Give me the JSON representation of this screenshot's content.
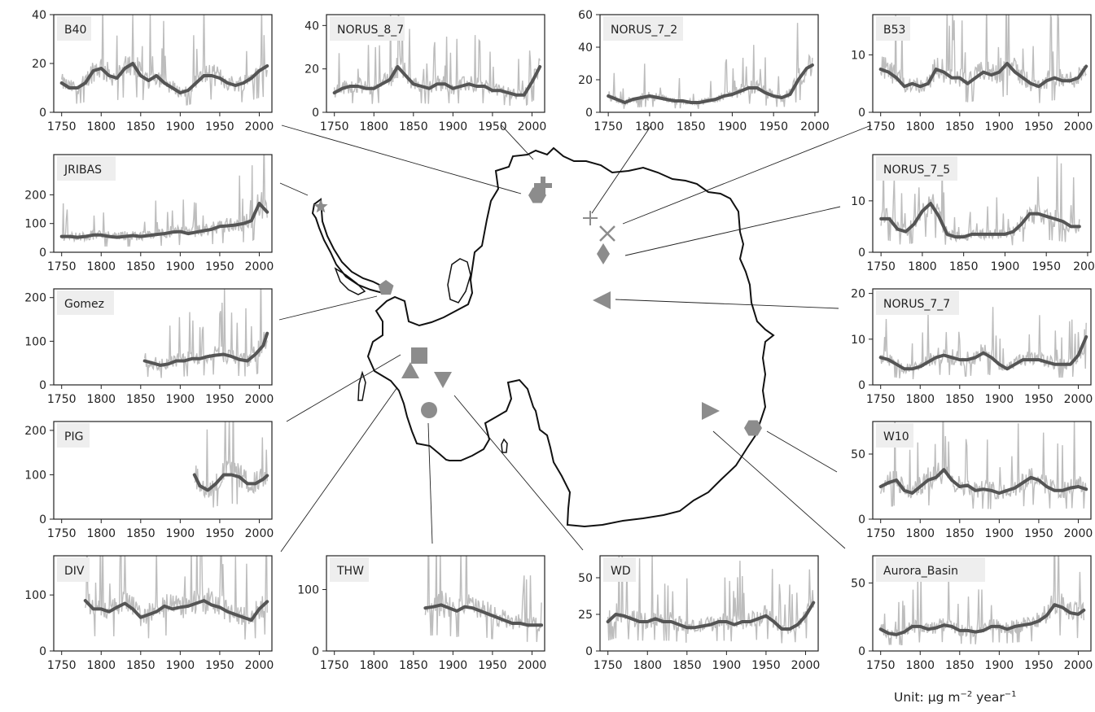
{
  "figure": {
    "unit_label": "Unit: µg m",
    "unit_exp1": "−2",
    "unit_mid": " year",
    "unit_exp2": "−1"
  },
  "colors": {
    "raw_series": "#bdbdbd",
    "smoothed_series": "#555555",
    "marker": "#8c8c8c",
    "axis": "#222222",
    "label_bg": "#eeeeee",
    "coastline": "#111111"
  },
  "chart_data": [
    {
      "type": "line",
      "site": "B40",
      "marker": "hexagon",
      "xlim": [
        1740,
        2016
      ],
      "ylim": [
        0,
        40
      ],
      "yticks": [
        0,
        20,
        40
      ],
      "xticks": [
        1750,
        1800,
        1850,
        1900,
        1950,
        2000
      ],
      "series": [
        {
          "name": "B40",
          "x": [
            1750,
            1760,
            1770,
            1780,
            1790,
            1800,
            1810,
            1820,
            1830,
            1840,
            1850,
            1860,
            1870,
            1880,
            1890,
            1900,
            1910,
            1920,
            1930,
            1940,
            1950,
            1960,
            1970,
            1980,
            1990,
            2000,
            2010
          ],
          "values": [
            12,
            10,
            10,
            12,
            17,
            18,
            15,
            14,
            18,
            20,
            15,
            13,
            15,
            12,
            10,
            8,
            9,
            12,
            15,
            15,
            14,
            12,
            11,
            12,
            14,
            17,
            19
          ]
        }
      ]
    },
    {
      "type": "line",
      "site": "NORUS_8_7",
      "marker": "plus",
      "xlim": [
        1740,
        2016
      ],
      "ylim": [
        0,
        45
      ],
      "yticks": [
        0,
        20,
        40
      ],
      "xticks": [
        1750,
        1800,
        1850,
        1900,
        1950,
        2000
      ],
      "series": [
        {
          "name": "NORUS_8_7",
          "x": [
            1750,
            1760,
            1770,
            1780,
            1790,
            1800,
            1810,
            1820,
            1830,
            1840,
            1850,
            1860,
            1870,
            1880,
            1890,
            1900,
            1910,
            1920,
            1930,
            1940,
            1950,
            1960,
            1970,
            1980,
            1990,
            2000,
            2010
          ],
          "values": [
            9,
            11,
            12,
            12,
            11,
            11,
            13,
            15,
            21,
            17,
            13,
            12,
            11,
            13,
            13,
            11,
            12,
            13,
            12,
            12,
            10,
            10,
            9,
            8,
            8,
            14,
            21
          ]
        }
      ]
    },
    {
      "type": "line",
      "site": "NORUS_7_2",
      "marker": "thin-plus",
      "xlim": [
        1740,
        2004
      ],
      "ylim": [
        0,
        60
      ],
      "yticks": [
        0,
        20,
        40,
        60
      ],
      "xticks": [
        1750,
        1800,
        1850,
        1900,
        1950,
        2000
      ],
      "series": [
        {
          "name": "NORUS_7_2",
          "x": [
            1750,
            1760,
            1770,
            1780,
            1790,
            1800,
            1810,
            1820,
            1830,
            1840,
            1850,
            1860,
            1870,
            1880,
            1890,
            1900,
            1910,
            1920,
            1930,
            1940,
            1950,
            1960,
            1970,
            1980,
            1990,
            1997
          ],
          "values": [
            10,
            8,
            6,
            8,
            9,
            10,
            9,
            8,
            7,
            7,
            6,
            6,
            7,
            8,
            10,
            11,
            13,
            15,
            15,
            12,
            10,
            9,
            11,
            20,
            27,
            29
          ]
        }
      ]
    },
    {
      "type": "line",
      "site": "B53",
      "marker": "cross",
      "xlim": [
        1740,
        2016
      ],
      "ylim": [
        0,
        17
      ],
      "yticks": [
        0,
        10
      ],
      "xticks": [
        1750,
        1800,
        1850,
        1900,
        1950,
        2000
      ],
      "series": [
        {
          "name": "B53",
          "x": [
            1750,
            1760,
            1770,
            1780,
            1790,
            1800,
            1810,
            1820,
            1830,
            1840,
            1850,
            1860,
            1870,
            1880,
            1890,
            1900,
            1910,
            1920,
            1930,
            1940,
            1950,
            1960,
            1970,
            1980,
            1990,
            2000,
            2010
          ],
          "values": [
            7.5,
            7,
            6,
            4.5,
            5,
            4.5,
            5,
            7.5,
            7,
            6,
            6,
            5,
            6,
            7,
            6.5,
            7,
            8.5,
            7,
            6,
            5,
            4.5,
            5.5,
            6,
            5.5,
            5.5,
            6,
            8
          ]
        }
      ]
    },
    {
      "type": "line",
      "site": "JRIBAS",
      "marker": "star",
      "xlim": [
        1740,
        2016
      ],
      "ylim": [
        0,
        340
      ],
      "yticks": [
        0,
        100,
        200
      ],
      "xticks": [
        1750,
        1800,
        1850,
        1900,
        1950,
        2000
      ],
      "series": [
        {
          "name": "JRIBAS",
          "x": [
            1750,
            1760,
            1770,
            1780,
            1790,
            1800,
            1810,
            1820,
            1830,
            1840,
            1850,
            1860,
            1870,
            1880,
            1890,
            1900,
            1910,
            1920,
            1930,
            1940,
            1950,
            1960,
            1970,
            1980,
            1990,
            2000,
            2010
          ],
          "values": [
            55,
            55,
            52,
            55,
            60,
            60,
            55,
            52,
            55,
            58,
            55,
            58,
            62,
            65,
            70,
            72,
            65,
            70,
            75,
            80,
            90,
            92,
            95,
            100,
            110,
            170,
            140
          ]
        }
      ]
    },
    {
      "type": "line",
      "site": "NORUS_7_5",
      "marker": "diamond",
      "xlim": [
        1740,
        2004
      ],
      "ylim": [
        0,
        19
      ],
      "yticks": [
        0,
        10
      ],
      "xticks": [
        1750,
        1800,
        1850,
        1900,
        1950,
        2000
      ],
      "series": [
        {
          "name": "NORUS_7_5",
          "x": [
            1750,
            1760,
            1770,
            1780,
            1790,
            1800,
            1810,
            1820,
            1830,
            1840,
            1850,
            1860,
            1870,
            1880,
            1890,
            1900,
            1910,
            1920,
            1930,
            1940,
            1950,
            1960,
            1970,
            1980,
            1990
          ],
          "values": [
            6.5,
            6.5,
            4.5,
            4,
            5.5,
            8,
            9.5,
            7,
            3.5,
            3,
            3,
            3.5,
            3.5,
            3.5,
            3.5,
            3.5,
            4,
            5.5,
            7.5,
            7.5,
            7,
            6.5,
            6,
            5,
            5
          ]
        }
      ]
    },
    {
      "type": "line",
      "site": "Gomez",
      "marker": "pentagon",
      "xlim": [
        1740,
        2016
      ],
      "ylim": [
        0,
        220
      ],
      "yticks": [
        0,
        100,
        200
      ],
      "xticks": [
        1750,
        1800,
        1850,
        1900,
        1950,
        2000
      ],
      "series": [
        {
          "name": "Gomez",
          "x": [
            1855,
            1865,
            1875,
            1885,
            1895,
            1905,
            1915,
            1925,
            1935,
            1945,
            1955,
            1965,
            1975,
            1985,
            1995,
            2005,
            2010
          ],
          "values": [
            55,
            50,
            45,
            48,
            55,
            55,
            60,
            60,
            65,
            68,
            70,
            65,
            58,
            55,
            70,
            90,
            118
          ]
        }
      ]
    },
    {
      "type": "line",
      "site": "NORUS_7_7",
      "marker": "triangle-left",
      "xlim": [
        1740,
        2016
      ],
      "ylim": [
        0,
        21
      ],
      "yticks": [
        0,
        10,
        20
      ],
      "xticks": [
        1750,
        1800,
        1850,
        1900,
        1950,
        2000
      ],
      "series": [
        {
          "name": "NORUS_7_7",
          "x": [
            1750,
            1760,
            1770,
            1780,
            1790,
            1800,
            1810,
            1820,
            1830,
            1840,
            1850,
            1860,
            1870,
            1880,
            1890,
            1900,
            1910,
            1920,
            1930,
            1940,
            1950,
            1960,
            1970,
            1980,
            1990,
            2000,
            2010
          ],
          "values": [
            6,
            5.5,
            4.5,
            3.5,
            3.5,
            4,
            5,
            6,
            6.5,
            6,
            5.5,
            5.5,
            6,
            7,
            6,
            4.5,
            3.5,
            4.5,
            5.5,
            5.5,
            5.5,
            5,
            4.5,
            4.5,
            4.5,
            6.5,
            10.5
          ]
        }
      ]
    },
    {
      "type": "line",
      "site": "PIG",
      "marker": "square",
      "xlim": [
        1740,
        2016
      ],
      "ylim": [
        0,
        220
      ],
      "yticks": [
        0,
        100,
        200
      ],
      "xticks": [
        1750,
        1800,
        1850,
        1900,
        1950,
        2000
      ],
      "series": [
        {
          "name": "PIG",
          "x": [
            1918,
            1925,
            1935,
            1945,
            1955,
            1965,
            1975,
            1985,
            1995,
            2005,
            2010
          ],
          "values": [
            100,
            75,
            65,
            80,
            100,
            100,
            95,
            80,
            80,
            90,
            98
          ]
        }
      ]
    },
    {
      "type": "line",
      "site": "W10",
      "marker": "hexagon",
      "xlim": [
        1740,
        2016
      ],
      "ylim": [
        0,
        75
      ],
      "yticks": [
        0,
        50
      ],
      "xticks": [
        1750,
        1800,
        1850,
        1900,
        1950,
        2000
      ],
      "series": [
        {
          "name": "W10",
          "x": [
            1750,
            1760,
            1770,
            1780,
            1790,
            1800,
            1810,
            1820,
            1830,
            1840,
            1850,
            1860,
            1870,
            1880,
            1890,
            1900,
            1910,
            1920,
            1930,
            1940,
            1950,
            1960,
            1970,
            1980,
            1990,
            2000,
            2010
          ],
          "values": [
            25,
            28,
            30,
            22,
            20,
            25,
            30,
            32,
            38,
            30,
            25,
            26,
            22,
            23,
            22,
            20,
            22,
            24,
            28,
            32,
            30,
            25,
            22,
            22,
            24,
            25,
            23
          ]
        }
      ]
    },
    {
      "type": "line",
      "site": "DIV",
      "marker": "triangle-up",
      "xlim": [
        1740,
        2016
      ],
      "ylim": [
        0,
        170
      ],
      "yticks": [
        0,
        100
      ],
      "xticks": [
        1750,
        1800,
        1850,
        1900,
        1950,
        2000
      ],
      "series": [
        {
          "name": "DIV",
          "x": [
            1780,
            1790,
            1800,
            1810,
            1820,
            1830,
            1840,
            1850,
            1860,
            1870,
            1880,
            1890,
            1900,
            1910,
            1920,
            1930,
            1940,
            1950,
            1960,
            1970,
            1980,
            1990,
            2000,
            2010
          ],
          "values": [
            90,
            75,
            75,
            70,
            78,
            85,
            75,
            60,
            65,
            70,
            80,
            75,
            78,
            80,
            85,
            90,
            82,
            78,
            70,
            65,
            60,
            55,
            75,
            88
          ]
        }
      ]
    },
    {
      "type": "line",
      "site": "THW",
      "marker": "circle",
      "xlim": [
        1740,
        2016
      ],
      "ylim": [
        0,
        155
      ],
      "yticks": [
        0,
        100
      ],
      "xticks": [
        1750,
        1800,
        1850,
        1900,
        1950,
        2000
      ],
      "series": [
        {
          "name": "THW",
          "x": [
            1865,
            1875,
            1885,
            1895,
            1905,
            1915,
            1925,
            1935,
            1945,
            1955,
            1965,
            1975,
            1985,
            1995,
            2005,
            2012
          ],
          "values": [
            70,
            72,
            75,
            70,
            65,
            72,
            70,
            65,
            60,
            55,
            50,
            45,
            45,
            42,
            42,
            42
          ]
        }
      ]
    },
    {
      "type": "line",
      "site": "WD",
      "marker": "triangle-down",
      "xlim": [
        1740,
        2016
      ],
      "ylim": [
        0,
        65
      ],
      "yticks": [
        0,
        25,
        50
      ],
      "xticks": [
        1750,
        1800,
        1850,
        1900,
        1950,
        2000
      ],
      "series": [
        {
          "name": "WD",
          "x": [
            1750,
            1760,
            1770,
            1780,
            1790,
            1800,
            1810,
            1820,
            1830,
            1840,
            1850,
            1860,
            1870,
            1880,
            1890,
            1900,
            1910,
            1920,
            1930,
            1940,
            1950,
            1960,
            1970,
            1980,
            1990,
            2000,
            2010
          ],
          "values": [
            20,
            25,
            24,
            22,
            20,
            20,
            22,
            20,
            20,
            18,
            16,
            16,
            17,
            18,
            20,
            20,
            18,
            20,
            20,
            22,
            24,
            20,
            15,
            15,
            18,
            24,
            33
          ]
        }
      ]
    },
    {
      "type": "line",
      "site": "Aurora_Basin",
      "marker": "triangle-right",
      "xlim": [
        1740,
        2016
      ],
      "ylim": [
        0,
        70
      ],
      "yticks": [
        0,
        50
      ],
      "xticks": [
        1750,
        1800,
        1850,
        1900,
        1950,
        2000
      ],
      "series": [
        {
          "name": "Aurora_Basin",
          "x": [
            1750,
            1760,
            1770,
            1780,
            1790,
            1800,
            1810,
            1820,
            1830,
            1840,
            1850,
            1860,
            1870,
            1880,
            1890,
            1900,
            1910,
            1920,
            1930,
            1940,
            1950,
            1960,
            1970,
            1980,
            1990,
            2000,
            2007
          ],
          "values": [
            16,
            13,
            12,
            14,
            18,
            18,
            16,
            17,
            19,
            18,
            15,
            15,
            14,
            15,
            18,
            18,
            16,
            18,
            19,
            20,
            22,
            26,
            34,
            32,
            28,
            27,
            30
          ]
        }
      ]
    }
  ]
}
